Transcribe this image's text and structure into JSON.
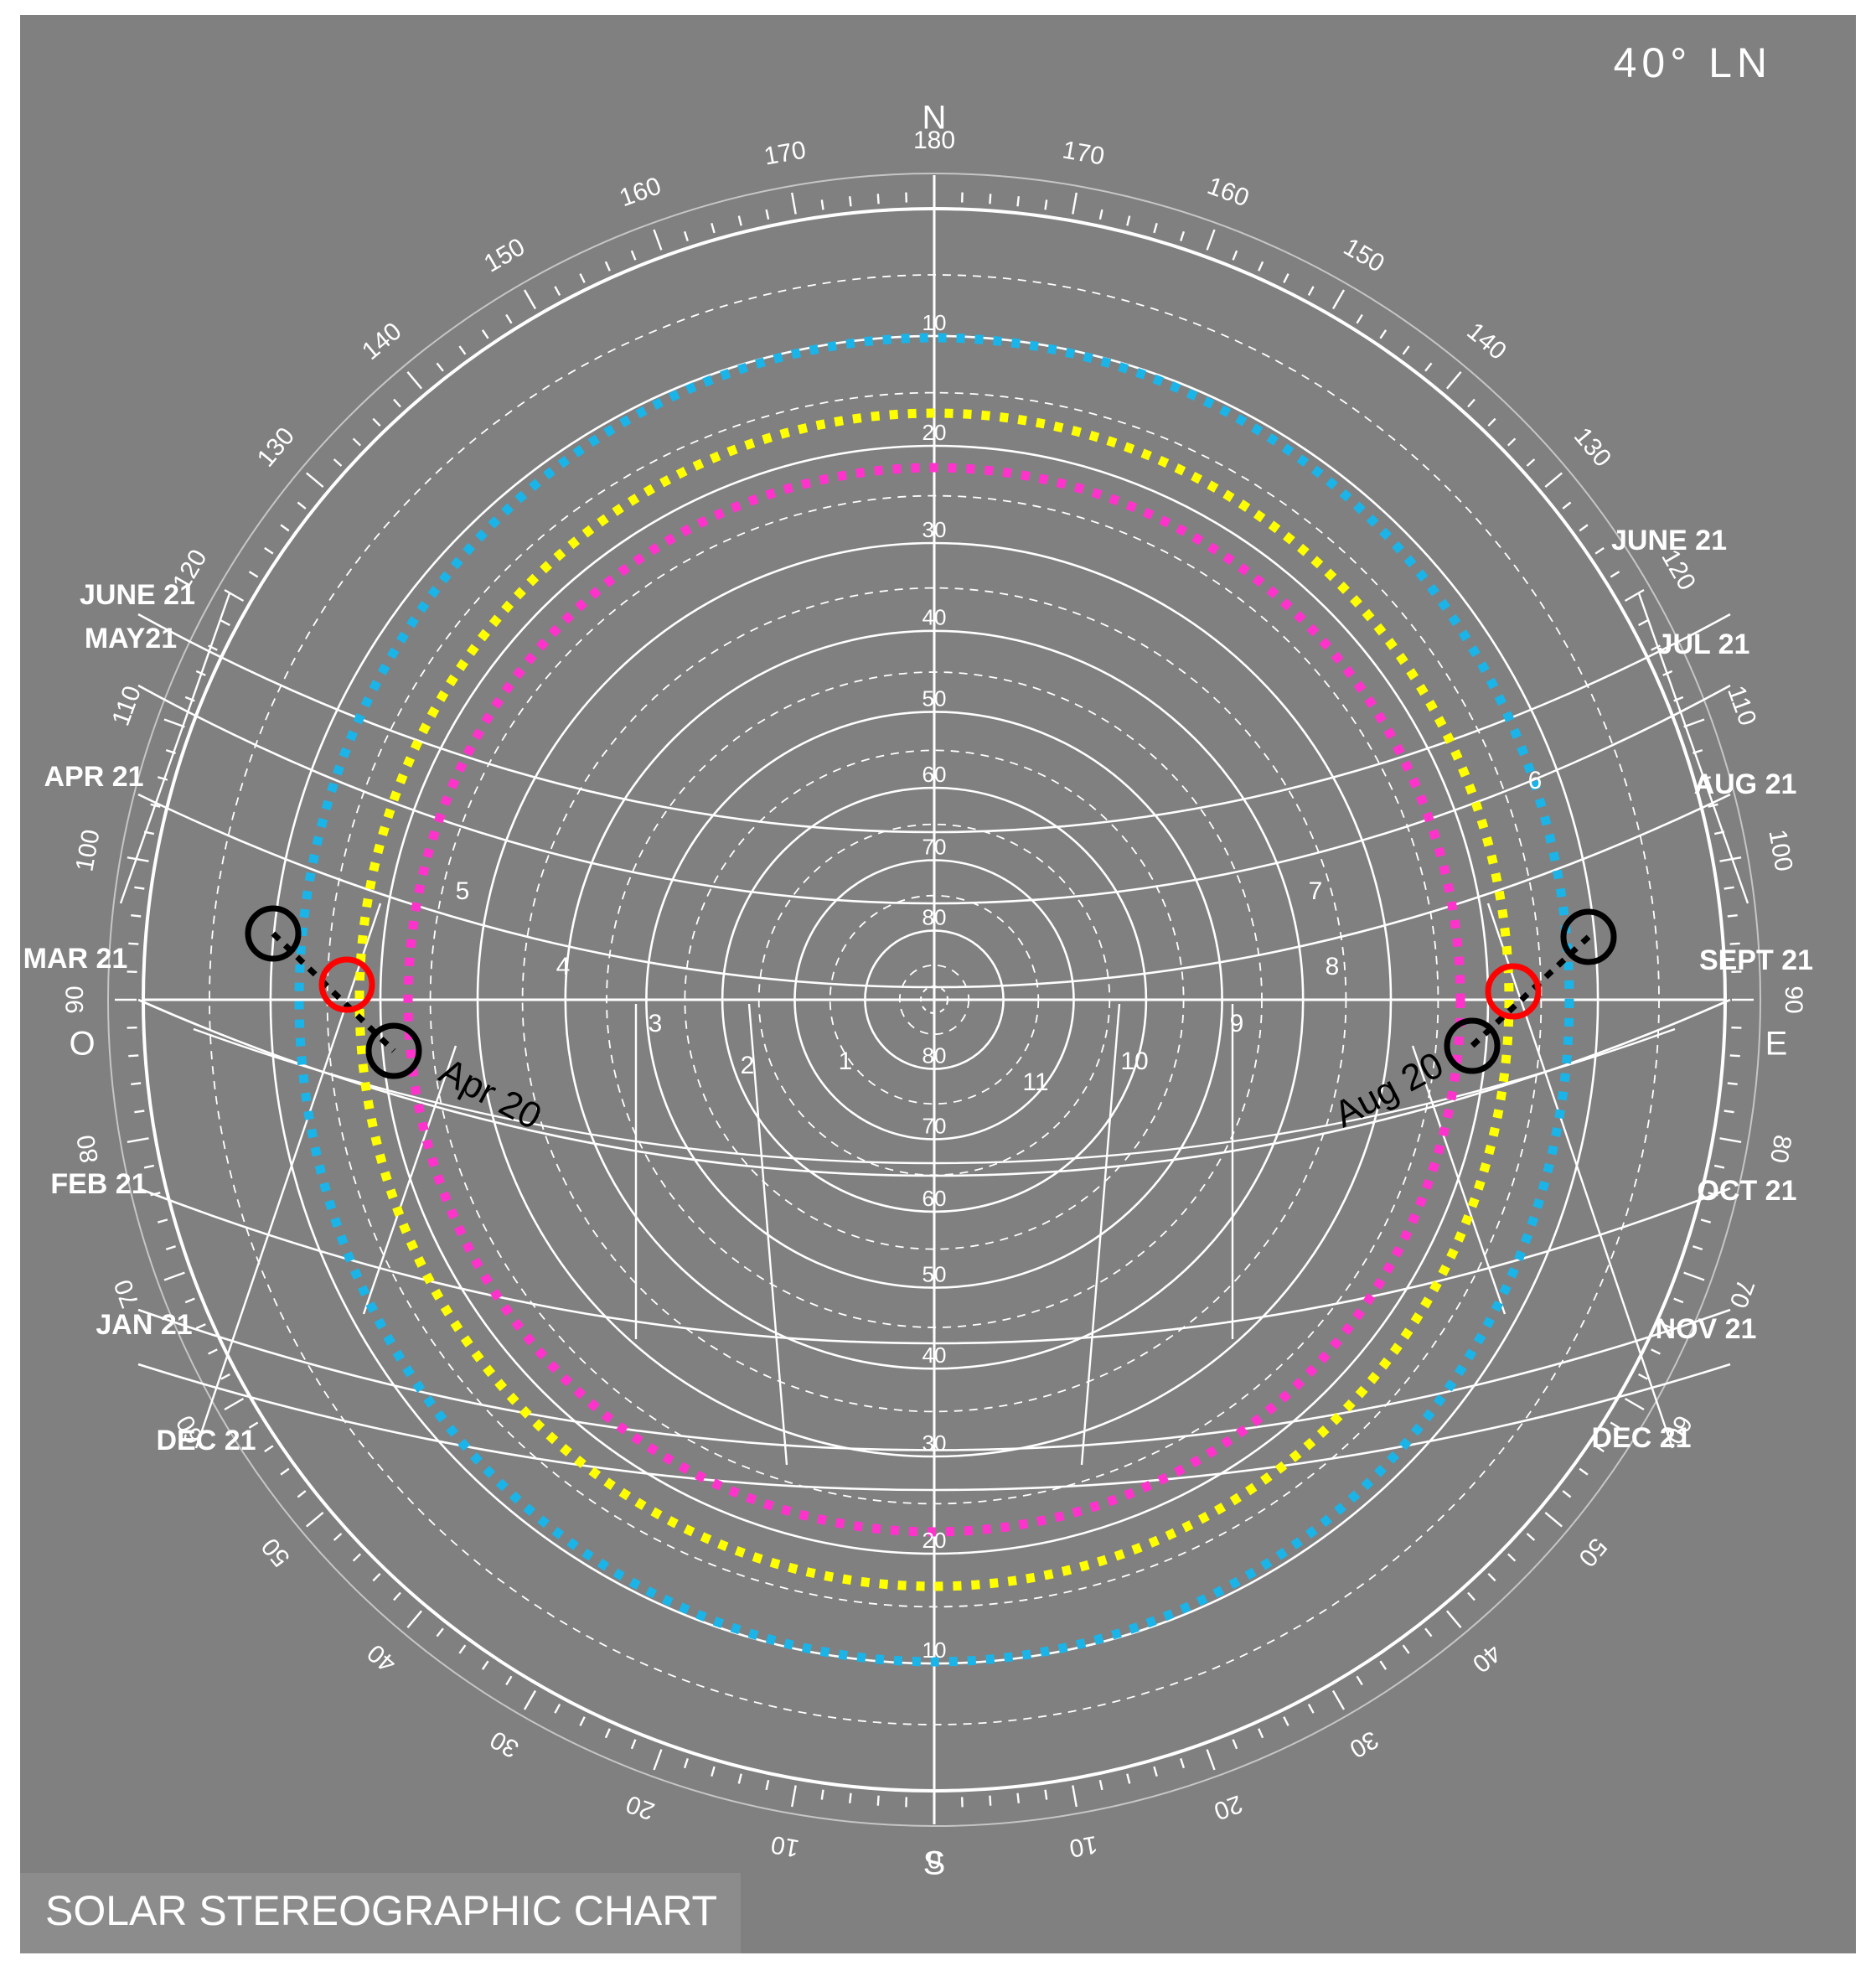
{
  "title": "SOLAR STEREOGRAPHIC CHART",
  "latitude": "40° LN",
  "cardinals": {
    "north": "N",
    "south": "S",
    "west": "O",
    "east": "E"
  },
  "azimuth_labels": [
    "0",
    "10",
    "20",
    "30",
    "40",
    "50",
    "60",
    "70",
    "80",
    "90",
    "100",
    "110",
    "120",
    "130",
    "140",
    "150",
    "160",
    "170",
    "180"
  ],
  "altitude_labels": [
    "10",
    "20",
    "30",
    "40",
    "50",
    "60",
    "70",
    "80"
  ],
  "hour_labels": [
    "1",
    "2",
    "3",
    "4",
    "5",
    "6",
    "7",
    "8",
    "9",
    "10",
    "11"
  ],
  "date_labels_left": [
    "JUNE 21",
    "MAY21",
    "APR 21",
    "MAR 21",
    "FEB 21",
    "JAN 21",
    "DEC 21"
  ],
  "date_labels_right": [
    "JUNE 21",
    "JUL 21",
    "AUG 21",
    "SEPT 21",
    "OCT 21",
    "NOV 21",
    "DEC 21"
  ],
  "annotations": {
    "left": "Apr 20",
    "right": "Aug 20"
  },
  "colors": {
    "background": "#808080",
    "lines": "#ffffff",
    "ring_blue": "#1ab4e8",
    "ring_yellow": "#ffff00",
    "ring_magenta": "#ff33cc",
    "marker_black": "#000000",
    "marker_red": "#ff0000"
  }
}
